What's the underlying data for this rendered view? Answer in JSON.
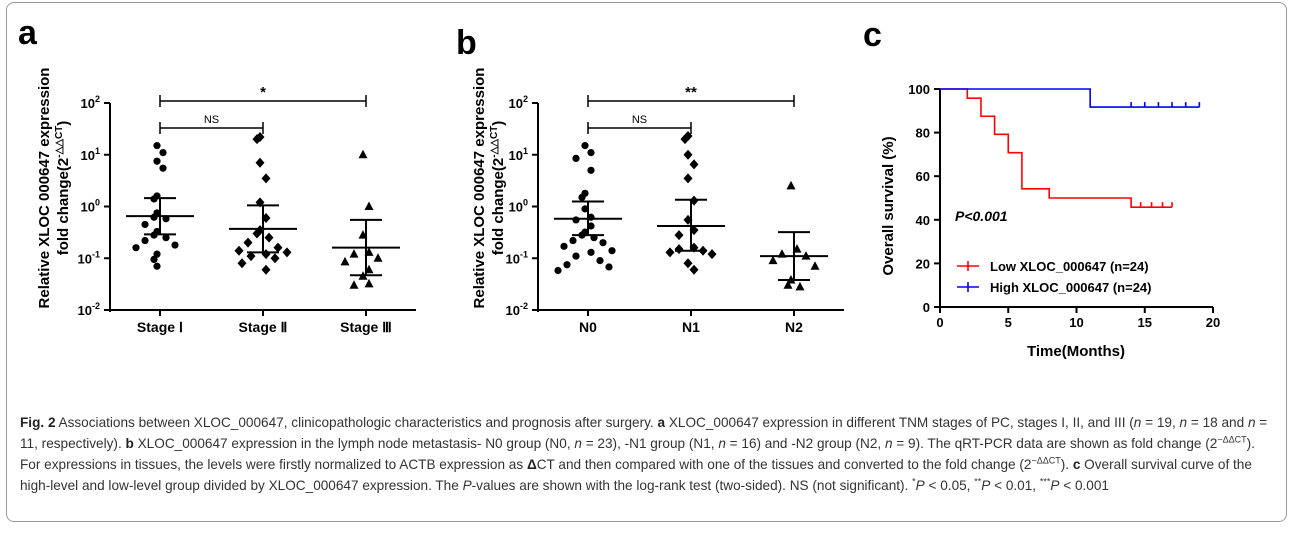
{
  "panels": {
    "a": {
      "letter": "a"
    },
    "b": {
      "letter": "b"
    },
    "c": {
      "letter": "c"
    }
  },
  "chart_data": [
    {
      "type": "scatter",
      "panel": "a",
      "ylabel_line1": "Relative XLOC 000647 expression",
      "ylabel_line2_prefix": "fold change(2",
      "ylabel_line2_sup": "-△△CT",
      "ylabel_line2_suffix": ")",
      "yscale": "log",
      "ylim": [
        0.01,
        100
      ],
      "yticks": [
        {
          "value": 0.01,
          "base": "10",
          "exp": "-2"
        },
        {
          "value": 0.1,
          "base": "10",
          "exp": "-1"
        },
        {
          "value": 1,
          "base": "10",
          "exp": "0"
        },
        {
          "value": 10,
          "base": "10",
          "exp": "1"
        },
        {
          "value": 100,
          "base": "10",
          "exp": "2"
        }
      ],
      "categories": [
        "Stage Ⅰ",
        "Stage Ⅱ",
        "Stage Ⅲ"
      ],
      "markers": [
        "circle",
        "diamond",
        "triangle"
      ],
      "groups": [
        {
          "category": "Stage Ⅰ",
          "mean": 0.65,
          "upper": 1.45,
          "lower": 0.29,
          "values": [
            15,
            11,
            7.5,
            5.5,
            1.6,
            1.4,
            0.75,
            0.62,
            0.58,
            0.45,
            0.33,
            0.28,
            0.25,
            0.22,
            0.18,
            0.16,
            0.12,
            0.095,
            0.07
          ]
        },
        {
          "category": "Stage Ⅱ",
          "mean": 0.37,
          "upper": 1.05,
          "lower": 0.13,
          "values": [
            22,
            20,
            7,
            3.5,
            1.2,
            0.6,
            0.35,
            0.3,
            0.25,
            0.2,
            0.16,
            0.14,
            0.13,
            0.12,
            0.11,
            0.1,
            0.08,
            0.06
          ]
        },
        {
          "category": "Stage Ⅲ",
          "mean": 0.16,
          "upper": 0.55,
          "lower": 0.047,
          "values": [
            10,
            1.0,
            0.28,
            0.13,
            0.12,
            0.1,
            0.085,
            0.06,
            0.045,
            0.032,
            0.03
          ]
        }
      ],
      "comparisons": [
        {
          "from": "Stage Ⅰ",
          "to": "Stage Ⅱ",
          "label": "NS"
        },
        {
          "from": "Stage Ⅰ",
          "to": "Stage Ⅲ",
          "label": "*"
        }
      ]
    },
    {
      "type": "scatter",
      "panel": "b",
      "ylabel_line1": "Relative XLOC 000647 expression",
      "ylabel_line2_prefix": "fold change(2",
      "ylabel_line2_sup": "-△△CT",
      "ylabel_line2_suffix": ")",
      "yscale": "log",
      "ylim": [
        0.01,
        100
      ],
      "yticks": [
        {
          "value": 0.01,
          "base": "10",
          "exp": "-2"
        },
        {
          "value": 0.1,
          "base": "10",
          "exp": "-1"
        },
        {
          "value": 1,
          "base": "10",
          "exp": "0"
        },
        {
          "value": 10,
          "base": "10",
          "exp": "1"
        },
        {
          "value": 100,
          "base": "10",
          "exp": "2"
        }
      ],
      "categories": [
        "N0",
        "N1",
        "N2"
      ],
      "markers": [
        "circle",
        "diamond",
        "triangle"
      ],
      "groups": [
        {
          "category": "N0",
          "mean": 0.58,
          "upper": 1.25,
          "lower": 0.28,
          "values": [
            15,
            11,
            8.5,
            5,
            1.8,
            1.5,
            0.9,
            0.62,
            0.55,
            0.42,
            0.32,
            0.28,
            0.25,
            0.22,
            0.2,
            0.17,
            0.14,
            0.11,
            0.09,
            0.075,
            0.068,
            0.058,
            0.13
          ]
        },
        {
          "category": "N1",
          "mean": 0.42,
          "upper": 1.35,
          "lower": 0.14,
          "values": [
            23,
            20,
            10,
            6.5,
            3.5,
            1.3,
            0.55,
            0.35,
            0.28,
            0.16,
            0.15,
            0.14,
            0.13,
            0.12,
            0.08,
            0.06
          ]
        },
        {
          "category": "N2",
          "mean": 0.11,
          "upper": 0.32,
          "lower": 0.038,
          "values": [
            2.5,
            0.15,
            0.12,
            0.11,
            0.09,
            0.07,
            0.038,
            0.03,
            0.028
          ]
        }
      ],
      "comparisons": [
        {
          "from": "N0",
          "to": "N1",
          "label": "NS"
        },
        {
          "from": "N0",
          "to": "N2",
          "label": "**"
        }
      ]
    },
    {
      "type": "line",
      "subtype": "kaplan-meier",
      "panel": "c",
      "xlabel": "Time(Months)",
      "ylabel": "Overall survival (%)",
      "xlim": [
        0,
        20
      ],
      "ylim": [
        0,
        100
      ],
      "xticks": [
        0,
        5,
        10,
        15,
        20
      ],
      "yticks": [
        0,
        20,
        40,
        60,
        80,
        100
      ],
      "annotation": "P<0.001",
      "legend_position": "bottom-left",
      "series": [
        {
          "name": "Low XLOC_000647 (n=24)",
          "color": "#ff0000",
          "steps": [
            [
              0,
              100
            ],
            [
              2,
              100
            ],
            [
              2,
              95.8
            ],
            [
              3,
              95.8
            ],
            [
              3,
              87.5
            ],
            [
              4,
              87.5
            ],
            [
              4,
              79.2
            ],
            [
              5,
              79.2
            ],
            [
              5,
              70.8
            ],
            [
              6,
              70.8
            ],
            [
              6,
              54.2
            ],
            [
              8,
              54.2
            ],
            [
              8,
              50
            ],
            [
              14,
              50
            ],
            [
              14,
              45.8
            ],
            [
              17,
              45.8
            ]
          ],
          "censored": [
            [
              14.7,
              45.8
            ],
            [
              15.5,
              45.8
            ],
            [
              16.3,
              45.8
            ],
            [
              17,
              45.8
            ]
          ]
        },
        {
          "name": "High XLOC_000647 (n=24)",
          "color": "#0000ff",
          "steps": [
            [
              0,
              100
            ],
            [
              11,
              100
            ],
            [
              11,
              91.7
            ],
            [
              19,
              91.7
            ]
          ],
          "censored": [
            [
              14,
              91.7
            ],
            [
              15,
              91.7
            ],
            [
              16,
              91.7
            ],
            [
              17,
              91.7
            ],
            [
              18,
              91.7
            ],
            [
              19,
              91.7
            ]
          ]
        }
      ]
    }
  ],
  "caption": {
    "fig_label": "Fig. 2",
    "t1": " Associations between XLOC_000647, clinicopathologic characteristics and prognosis after surgery. ",
    "a": "a",
    "t2": " XLOC_000647 expression in different TNM stages of PC, stages I, II, and III (",
    "n_italic": "n",
    "t3": " = 19, ",
    "t4": " = 18 and ",
    "t5": " = 11, respectively). ",
    "b": "b",
    "t6": " XLOC_000647 expression in the lymph node metastasis- N0 group (N0, ",
    "t7": " = 23), -N1 group (N1, ",
    "t8": " = 16) and -N2 group (N2, ",
    "t9": " = 9). The qRT-PCR data are shown as fold change (2",
    "sup1": "−ΔΔCT",
    "t10": "). For expressions in tissues, the levels were firstly normalized to ACTB expression as ",
    "delta": "Δ",
    "t11": "CT and then compared with one of the tissues and converted to the fold change (2",
    "sup2": "−ΔΔCT",
    "t12": "). ",
    "c": "c",
    "t13": " Overall survival curve of the high-level and low-level group divided by XLOC_000647 expression. The ",
    "p_italic": "P",
    "t14": "-values are shown with the log-rank test (two-sided). NS (not significant). ",
    "star1": "*",
    "t15": " < 0.05, ",
    "star2": "**",
    "t16": " < 0.01, ",
    "star3": "***",
    "t17": " < 0.001"
  }
}
